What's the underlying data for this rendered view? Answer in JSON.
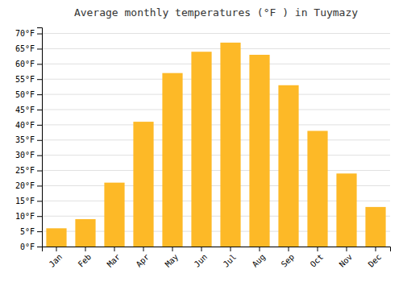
{
  "chart_data": {
    "type": "bar",
    "title": "Average monthly temperatures (°F ) in Tuymazy",
    "categories": [
      "Jan",
      "Feb",
      "Mar",
      "Apr",
      "May",
      "Jun",
      "Jul",
      "Aug",
      "Sep",
      "Oct",
      "Nov",
      "Dec"
    ],
    "values": [
      6,
      9,
      21,
      41,
      57,
      64,
      67,
      63,
      53,
      38,
      24,
      13
    ],
    "color": "#FDB927",
    "ylim": [
      0,
      72
    ],
    "yticks": [
      {
        "value": 0,
        "label": "0°F"
      },
      {
        "value": 5,
        "label": "5°F"
      },
      {
        "value": 10,
        "label": "10°F"
      },
      {
        "value": 15,
        "label": "15°F"
      },
      {
        "value": 20,
        "label": "20°F"
      },
      {
        "value": 25,
        "label": "25°F"
      },
      {
        "value": 30,
        "label": "30°F"
      },
      {
        "value": 35,
        "label": "35°F"
      },
      {
        "value": 40,
        "label": "40°F"
      },
      {
        "value": 45,
        "label": "45°F"
      },
      {
        "value": 50,
        "label": "50°F"
      },
      {
        "value": 55,
        "label": "55°F"
      },
      {
        "value": 60,
        "label": "60°F"
      },
      {
        "value": 65,
        "label": "65°F"
      },
      {
        "value": 70,
        "label": "70°F"
      }
    ],
    "grid": true
  }
}
